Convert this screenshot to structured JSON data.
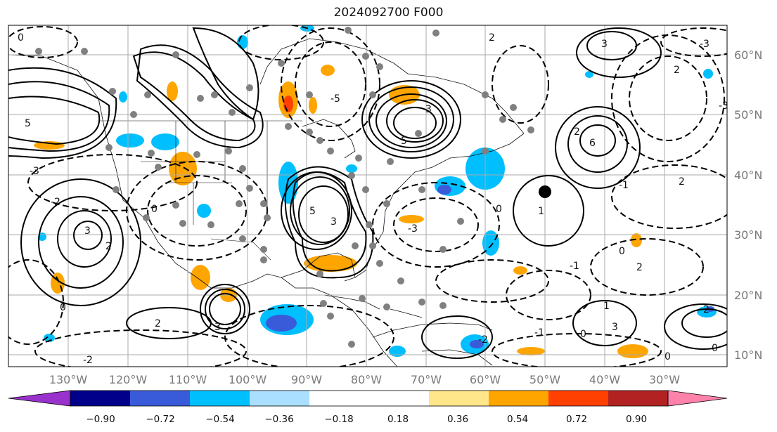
{
  "title": "2024092700 F000",
  "lon_labels": [
    "130°W",
    "120°W",
    "110°W",
    "100°W",
    "90°W",
    "80°W",
    "70°W",
    "60°W",
    "50°W",
    "40°W",
    "30°W"
  ],
  "lat_labels": [
    "60°N",
    "50°N",
    "40°N",
    "30°N",
    "20°N",
    "10°N"
  ],
  "colorbar": {
    "colors": [
      "#9932cc",
      "#00008b",
      "#3a5bd9",
      "#00bfff",
      "#aadfff",
      "#ffffff",
      "#ffe68a",
      "#ffa500",
      "#ff4000",
      "#b22222",
      "#ff82ab"
    ],
    "ticks": [
      "−0.90",
      "−0.72",
      "−0.54",
      "−0.36",
      "−0.18",
      "0.18",
      "0.36",
      "0.54",
      "0.72",
      "0.90"
    ]
  },
  "contour_labels": [
    "0",
    "-2",
    "2",
    "-3",
    "3",
    "-5",
    "5",
    "1",
    "-1",
    "6"
  ],
  "marker": {
    "type": "storm-center",
    "color": "#000000"
  }
}
